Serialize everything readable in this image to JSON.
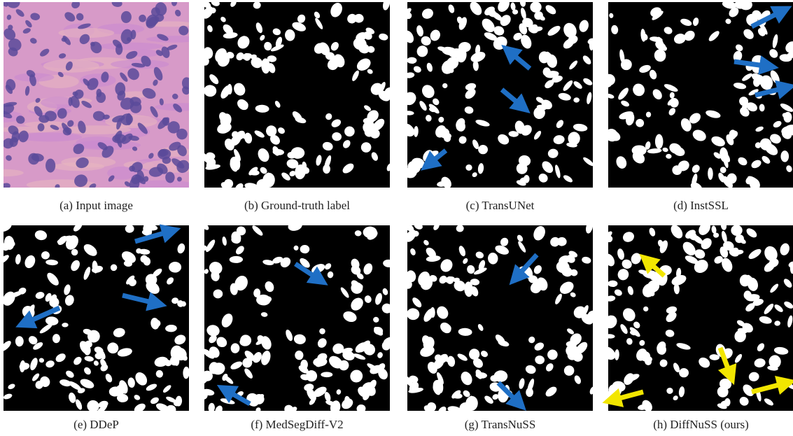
{
  "figure": {
    "captions": [
      "(a) Input image",
      "(b) Ground-truth label",
      "(c) TransUNet",
      "(d) InstSSL",
      "(e) DDeP",
      "(f) MedSegDiff-V2",
      "(g) TransNuSS",
      "(h) DiffNuSS (ours)"
    ]
  }
}
